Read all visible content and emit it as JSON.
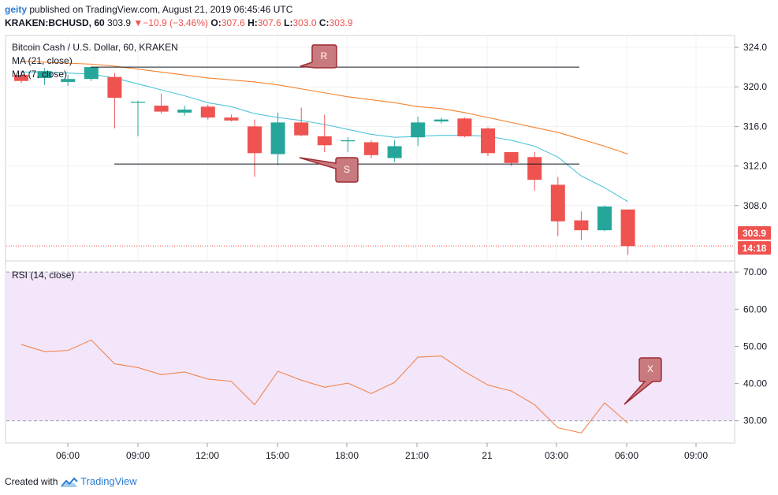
{
  "header": {
    "author": "geity",
    "published": "published on TradingView.com, August 21, 2019 06:45:46 UTC",
    "symbol": "KRAKEN:BCHUSD, 60",
    "last": "303.9",
    "change": "−10.9 (−3.46%)",
    "o_label": "O:",
    "o_value": "307.6",
    "h_label": "H:",
    "h_value": "307.6",
    "l_label": "L:",
    "l_value": "303.0",
    "c_label": "C:",
    "c_value": "303.9"
  },
  "footer": {
    "created": "Created with",
    "brand": "TradingView"
  },
  "colors": {
    "up": "#26a69a",
    "down": "#ef5350",
    "ma21": "#f5812d",
    "ma7": "#4fc3d9",
    "rsi": "#f0864f",
    "rsi_band": "#f3e6fb",
    "annot_fill": "#c97a7e",
    "annot_stroke": "#9e2b33"
  },
  "chart_data": [
    {
      "type": "candlestick",
      "title": "Bitcoin Cash / U.S. Dollar, 60, KRAKEN",
      "ylim": [
        302.4,
        325.2
      ],
      "yticks": [
        "324.0",
        "320.0",
        "316.0",
        "312.0",
        "308.0"
      ],
      "last_price_label": "303.9",
      "countdown_label": "14:18",
      "x_tick_labels": [
        "06:00",
        "09:00",
        "12:00",
        "15:00",
        "18:00",
        "21:00",
        "21",
        "03:00",
        "06:00",
        "09:00"
      ],
      "candles": [
        {
          "t": "Aug 20 04:00",
          "o": 321.2,
          "h": 321.6,
          "l": 320.4,
          "c": 320.6
        },
        {
          "t": "Aug 20 05:00",
          "o": 320.9,
          "h": 321.9,
          "l": 320.2,
          "c": 321.6
        },
        {
          "t": "Aug 20 06:00",
          "o": 320.5,
          "h": 321.2,
          "l": 320.1,
          "c": 320.8
        },
        {
          "t": "Aug 20 07:00",
          "o": 320.8,
          "h": 322.0,
          "l": 320.6,
          "c": 322.0
        },
        {
          "t": "Aug 20 08:00",
          "o": 321.0,
          "h": 321.4,
          "l": 315.8,
          "c": 318.9
        },
        {
          "t": "Aug 20 09:00",
          "o": 318.4,
          "h": 318.6,
          "l": 315.0,
          "c": 318.5
        },
        {
          "t": "Aug 20 10:00",
          "o": 318.1,
          "h": 319.3,
          "l": 317.3,
          "c": 317.5
        },
        {
          "t": "Aug 20 11:00",
          "o": 317.4,
          "h": 318.1,
          "l": 317.1,
          "c": 317.7
        },
        {
          "t": "Aug 20 12:00",
          "o": 318.0,
          "h": 318.2,
          "l": 316.7,
          "c": 316.9
        },
        {
          "t": "Aug 20 13:00",
          "o": 316.9,
          "h": 317.2,
          "l": 316.5,
          "c": 316.6
        },
        {
          "t": "Aug 20 14:00",
          "o": 316.0,
          "h": 316.7,
          "l": 310.9,
          "c": 313.3
        },
        {
          "t": "Aug 20 15:00",
          "o": 313.2,
          "h": 317.4,
          "l": 312.1,
          "c": 316.4
        },
        {
          "t": "Aug 20 16:00",
          "o": 316.4,
          "h": 317.9,
          "l": 315.0,
          "c": 315.1
        },
        {
          "t": "Aug 20 17:00",
          "o": 315.0,
          "h": 317.2,
          "l": 313.4,
          "c": 314.1
        },
        {
          "t": "Aug 20 18:00",
          "o": 314.5,
          "h": 314.9,
          "l": 313.4,
          "c": 314.6
        },
        {
          "t": "Aug 20 19:00",
          "o": 314.4,
          "h": 314.6,
          "l": 312.8,
          "c": 313.1
        },
        {
          "t": "Aug 20 20:00",
          "o": 312.8,
          "h": 314.6,
          "l": 312.4,
          "c": 314.0
        },
        {
          "t": "Aug 20 21:00",
          "o": 314.9,
          "h": 317.0,
          "l": 314.0,
          "c": 316.4
        },
        {
          "t": "Aug 20 22:00",
          "o": 316.5,
          "h": 316.9,
          "l": 316.3,
          "c": 316.7
        },
        {
          "t": "Aug 20 23:00",
          "o": 316.8,
          "h": 316.9,
          "l": 314.9,
          "c": 315.0
        },
        {
          "t": "Aug 21 00:00",
          "o": 315.8,
          "h": 315.9,
          "l": 313.0,
          "c": 313.3
        },
        {
          "t": "Aug 21 01:00",
          "o": 313.4,
          "h": 313.4,
          "l": 312.0,
          "c": 312.3
        },
        {
          "t": "Aug 21 02:00",
          "o": 312.9,
          "h": 313.4,
          "l": 309.5,
          "c": 310.6
        },
        {
          "t": "Aug 21 03:00",
          "o": 310.1,
          "h": 310.9,
          "l": 304.9,
          "c": 306.4
        },
        {
          "t": "Aug 21 04:00",
          "o": 306.5,
          "h": 307.4,
          "l": 304.5,
          "c": 305.5
        },
        {
          "t": "Aug 21 05:00",
          "o": 305.5,
          "h": 308.0,
          "l": 305.4,
          "c": 307.9
        },
        {
          "t": "Aug 21 06:00",
          "o": 307.6,
          "h": 307.6,
          "l": 303.0,
          "c": 303.9
        }
      ],
      "series": [
        {
          "name": "MA (21, close)",
          "values": [
            322.6,
            322.5,
            322.4,
            322.3,
            322.1,
            321.8,
            321.5,
            321.2,
            320.9,
            320.7,
            320.5,
            320.2,
            319.8,
            319.4,
            319.0,
            318.7,
            318.4,
            318.0,
            317.8,
            317.4,
            316.9,
            316.4,
            315.9,
            315.4,
            314.7,
            314.0,
            313.2
          ]
        },
        {
          "name": "MA (7, close)",
          "values": [
            321.5,
            321.5,
            321.4,
            321.3,
            320.9,
            320.3,
            319.7,
            319.1,
            318.4,
            318.0,
            317.3,
            316.9,
            316.6,
            316.2,
            315.7,
            315.2,
            314.9,
            315.0,
            315.1,
            315.1,
            315.0,
            314.6,
            314.0,
            312.9,
            311.0,
            309.8,
            308.4
          ]
        }
      ],
      "annotations": [
        {
          "label": "R",
          "kind": "horizontal-line",
          "y": 322.0
        },
        {
          "label": "S",
          "kind": "horizontal-line",
          "y": 312.2
        }
      ]
    },
    {
      "type": "line",
      "title": "RSI (14, close)",
      "ylim": [
        24,
        73
      ],
      "yticks": [
        "70.00",
        "60.00",
        "50.00",
        "40.00",
        "30.00"
      ],
      "band": [
        30,
        70
      ],
      "series": [
        {
          "name": "RSI (14, close)",
          "values": [
            50.5,
            48.6,
            48.9,
            51.7,
            45.3,
            44.3,
            42.4,
            43.1,
            41.2,
            40.6,
            34.3,
            43.3,
            40.9,
            39.0,
            40.1,
            37.3,
            40.3,
            47.1,
            47.4,
            43.2,
            39.6,
            38.0,
            34.3,
            28.1,
            26.7,
            34.8,
            29.3
          ]
        }
      ],
      "annotations": [
        {
          "label": "X"
        }
      ]
    }
  ]
}
